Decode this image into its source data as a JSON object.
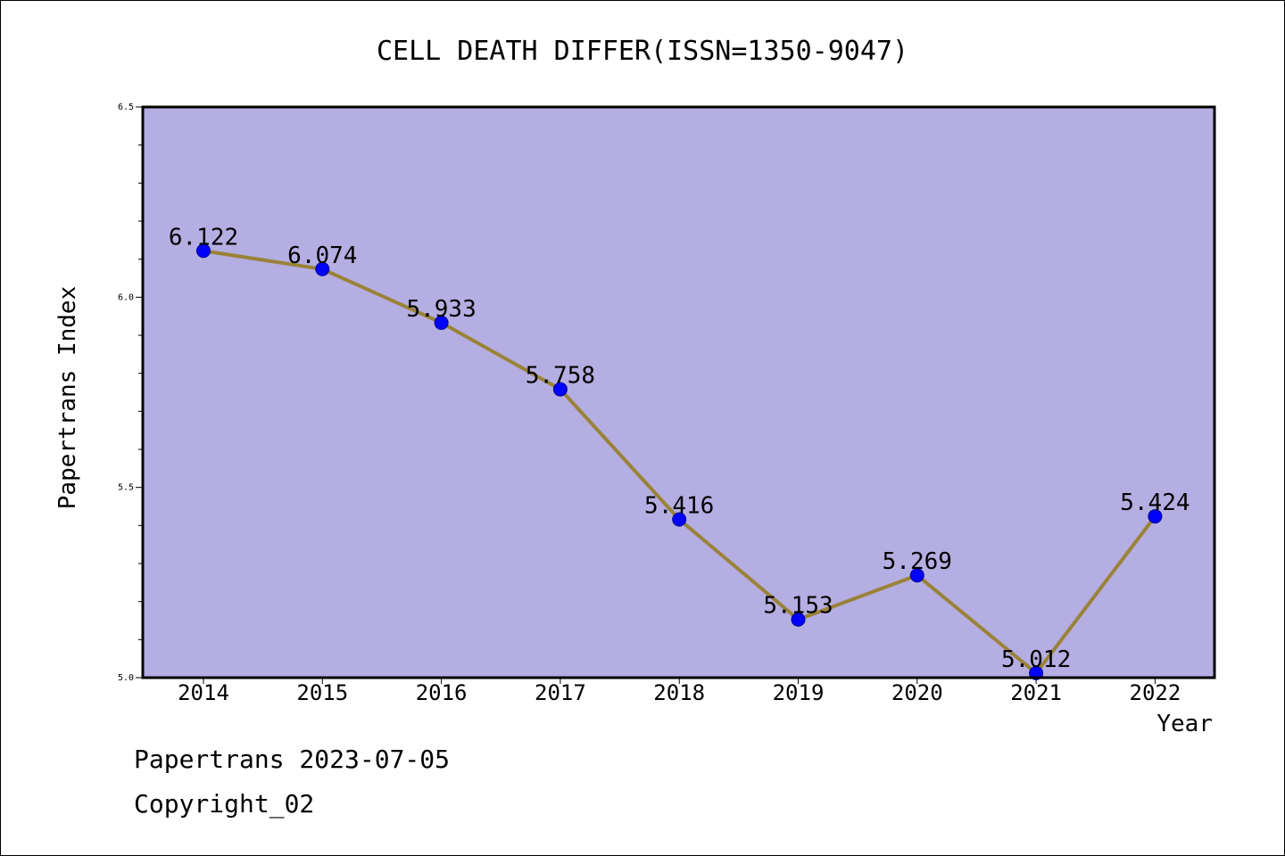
{
  "chart_data": {
    "type": "line",
    "title": "CELL DEATH DIFFER(ISSN=1350-9047)",
    "xlabel": "Year",
    "ylabel": "Papertrans Index",
    "x": [
      "2014",
      "2015",
      "2016",
      "2017",
      "2018",
      "2019",
      "2020",
      "2021",
      "2022"
    ],
    "values": [
      6.122,
      6.074,
      5.933,
      5.758,
      5.416,
      5.153,
      5.269,
      5.012,
      5.424
    ],
    "data_labels": [
      "6.122",
      "6.074",
      "5.933",
      "5.758",
      "5.416",
      "5.153",
      "5.269",
      "5.012",
      "5.424"
    ],
    "ylim": [
      5.0,
      6.5
    ],
    "yticks": [
      "5.0",
      "5.5",
      "6.0",
      "6.5"
    ],
    "grid": false,
    "colors": {
      "plot_background": "#b5aee2",
      "line": "#9a8238",
      "marker": "#0000ff"
    }
  },
  "footer": {
    "line1": "Papertrans 2023-07-05",
    "line2": "Copyright_02"
  }
}
